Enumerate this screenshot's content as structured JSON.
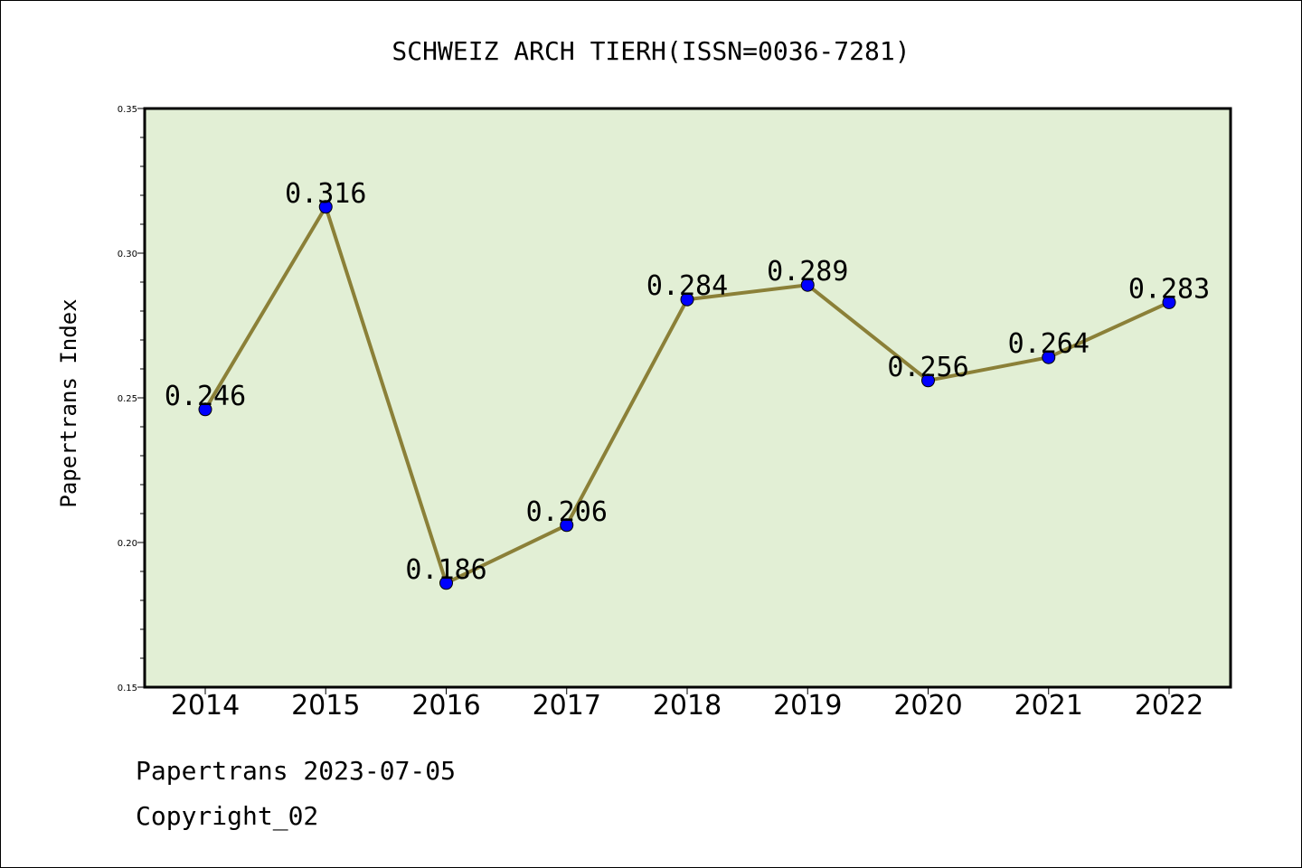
{
  "chart_data": {
    "type": "line",
    "title": "SCHWEIZ ARCH TIERH(ISSN=0036-7281)",
    "xlabel": "",
    "ylabel": "Papertrans Index",
    "categories": [
      "2014",
      "2015",
      "2016",
      "2017",
      "2018",
      "2019",
      "2020",
      "2021",
      "2022"
    ],
    "values": [
      0.246,
      0.316,
      0.186,
      0.206,
      0.284,
      0.289,
      0.256,
      0.264,
      0.283
    ],
    "data_labels": [
      "0.246",
      "0.316",
      "0.186",
      "0.206",
      "0.284",
      "0.289",
      "0.256",
      "0.264",
      "0.283"
    ],
    "ylim": [
      0.15,
      0.35
    ],
    "yticks": [
      "0.15",
      "0.20",
      "0.25",
      "0.30",
      "0.35"
    ],
    "grid": false,
    "colors": {
      "plot_background": "#e2efd5",
      "line": "#8b8038",
      "marker": "#0000ff"
    }
  },
  "footer": {
    "date_line": "Papertrans 2023-07-05",
    "copyright": "Copyright_02"
  }
}
